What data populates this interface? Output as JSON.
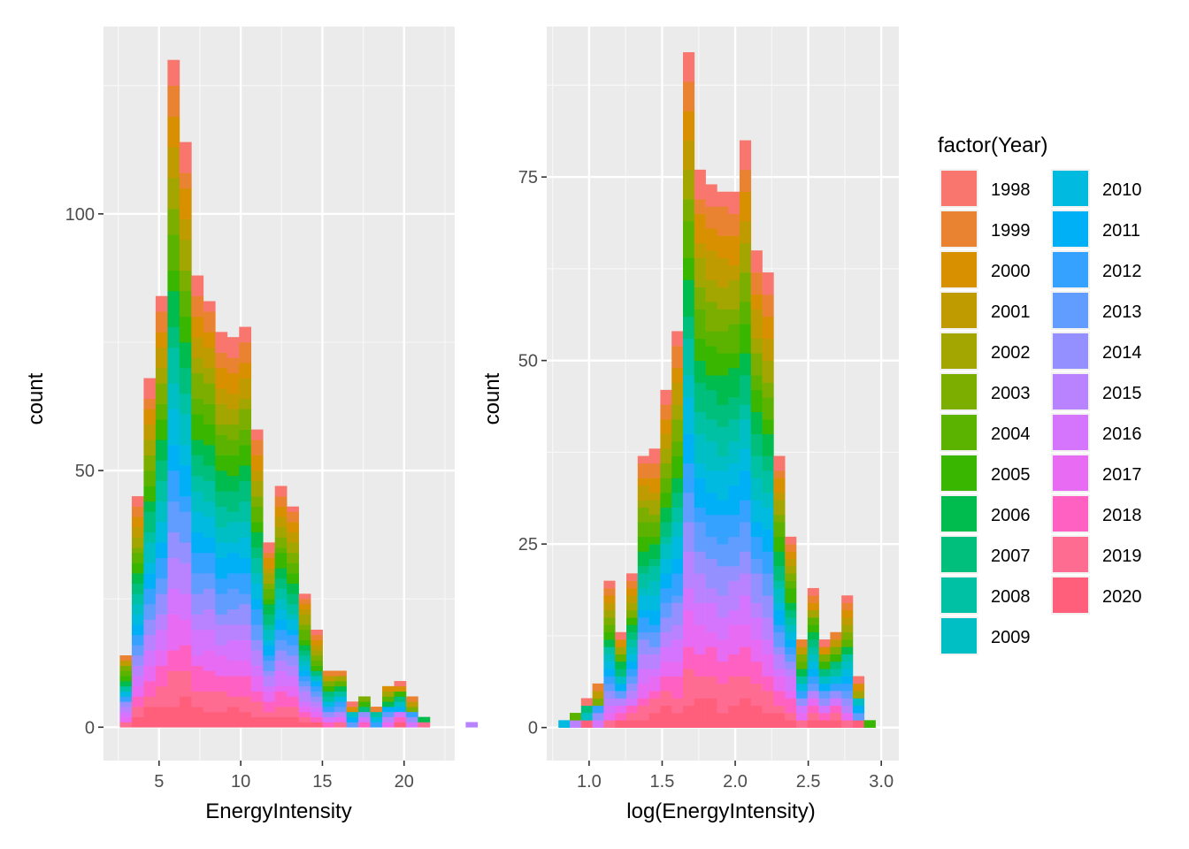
{
  "legend": {
    "title": "factor(Year)",
    "items": [
      {
        "label": "1998",
        "color": "#F8766D"
      },
      {
        "label": "1999",
        "color": "#EA8331"
      },
      {
        "label": "2000",
        "color": "#D89000"
      },
      {
        "label": "2001",
        "color": "#C09B00"
      },
      {
        "label": "2002",
        "color": "#A3A500"
      },
      {
        "label": "2003",
        "color": "#7CAE00"
      },
      {
        "label": "2004",
        "color": "#5BB300"
      },
      {
        "label": "2005",
        "color": "#39B600"
      },
      {
        "label": "2006",
        "color": "#00BB4E"
      },
      {
        "label": "2007",
        "color": "#00BF7D"
      },
      {
        "label": "2008",
        "color": "#00C1A3"
      },
      {
        "label": "2009",
        "color": "#00BFC4"
      },
      {
        "label": "2010",
        "color": "#00BAE0"
      },
      {
        "label": "2011",
        "color": "#00B0F6"
      },
      {
        "label": "2012",
        "color": "#35A2FF"
      },
      {
        "label": "2013",
        "color": "#619CFF"
      },
      {
        "label": "2014",
        "color": "#9590FF"
      },
      {
        "label": "2015",
        "color": "#B983FF"
      },
      {
        "label": "2016",
        "color": "#D575FE"
      },
      {
        "label": "2017",
        "color": "#E76BF3"
      },
      {
        "label": "2018",
        "color": "#FF61C3"
      },
      {
        "label": "2019",
        "color": "#FF6C91"
      },
      {
        "label": "2020",
        "color": "#FF5F7A"
      }
    ]
  },
  "chart_data": [
    {
      "type": "bar",
      "subtype": "stacked-histogram",
      "xlabel": "EnergyIntensity",
      "ylabel": "count",
      "xlim": [
        1.6,
        23.1
      ],
      "ylim": [
        -6.5,
        136.5
      ],
      "x_ticks": [
        5,
        10,
        15,
        20
      ],
      "x_tick_labels": [
        "5",
        "10",
        "15",
        "20"
      ],
      "y_ticks": [
        0,
        50,
        100
      ],
      "y_tick_labels": [
        "0",
        "50",
        "100"
      ],
      "grid": true,
      "bin_width": 0.73,
      "bin_start": 2.6,
      "totals": [
        14,
        45,
        68,
        84,
        130,
        114,
        88,
        83,
        77,
        76,
        78,
        58,
        36,
        47,
        43,
        26,
        19,
        11,
        11,
        5,
        6,
        4,
        8,
        9,
        6,
        2,
        0,
        0,
        0,
        1
      ]
    },
    {
      "type": "bar",
      "subtype": "stacked-histogram",
      "xlabel": "log(EnergyIntensity)",
      "ylabel": "count",
      "xlim": [
        0.71,
        3.12
      ],
      "ylim": [
        -4.5,
        95.5
      ],
      "x_ticks": [
        1.0,
        1.5,
        2.0,
        2.5,
        3.0
      ],
      "x_tick_labels": [
        "1.0",
        "1.5",
        "2.0",
        "2.5",
        "3.0"
      ],
      "y_ticks": [
        0,
        25,
        50,
        75
      ],
      "y_tick_labels": [
        "0",
        "25",
        "50",
        "75"
      ],
      "grid": true,
      "bin_width": 0.0775,
      "bin_start": 0.79,
      "totals": [
        1,
        2,
        4,
        6,
        20,
        13,
        21,
        37,
        38,
        46,
        54,
        92,
        76,
        74,
        73,
        73,
        80,
        65,
        62,
        37,
        26,
        12,
        19,
        12,
        13,
        18,
        7,
        1
      ]
    }
  ]
}
